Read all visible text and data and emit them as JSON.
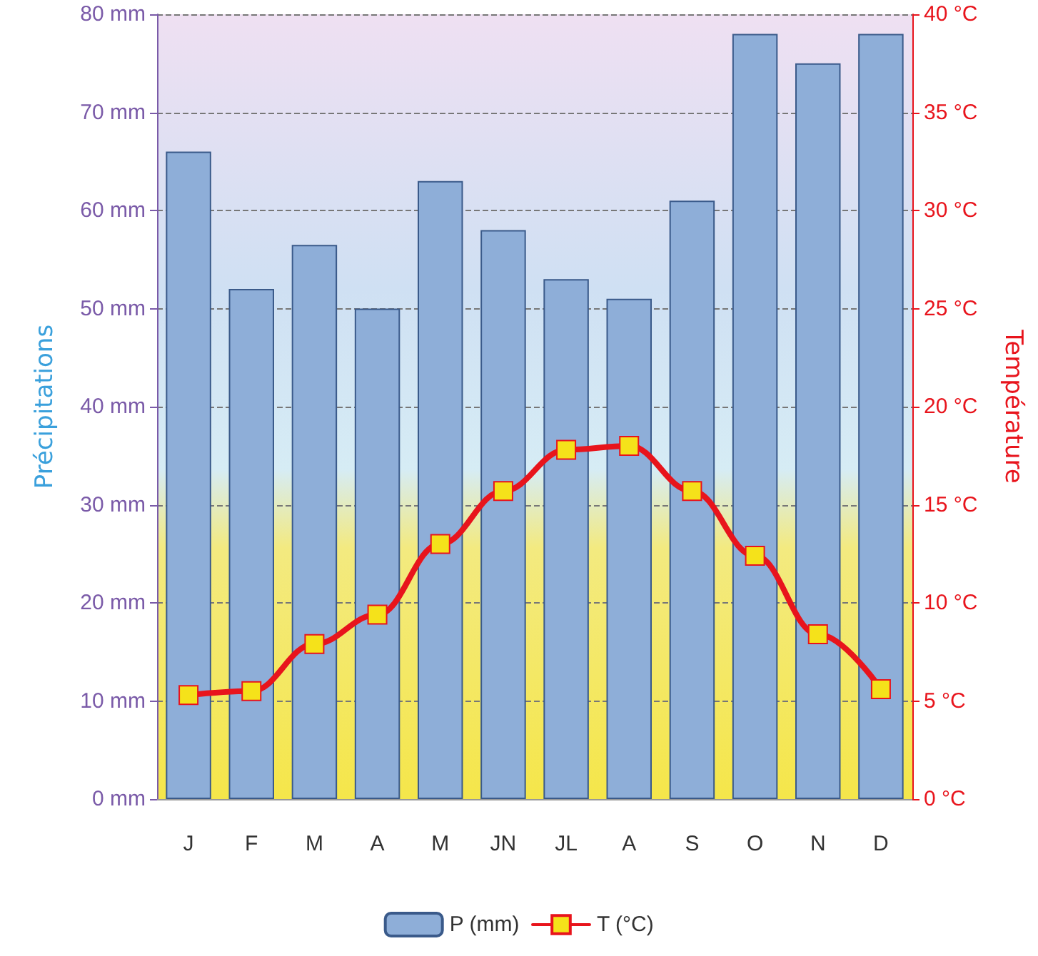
{
  "chart_data": {
    "type": "bar",
    "categories": [
      "J",
      "F",
      "M",
      "A",
      "M",
      "JN",
      "JL",
      "A",
      "S",
      "O",
      "N",
      "D"
    ],
    "series": [
      {
        "name": "P (mm)",
        "color": "#8eaed8",
        "values": [
          66,
          52,
          56.5,
          50,
          63,
          58,
          53,
          51,
          61,
          78,
          75,
          78
        ]
      },
      {
        "name": "T (°C)",
        "type": "line",
        "axis": "y2",
        "color": "#e8141c",
        "values": [
          5.3,
          5.5,
          7.9,
          9.4,
          13,
          15.7,
          17.8,
          18,
          15.7,
          12.4,
          8.4,
          5.6
        ]
      }
    ],
    "ylabel": "Précipitations",
    "y2label": "Température",
    "ylim": [
      0,
      80
    ],
    "yticks": [
      {
        "value": 0,
        "label": "0 mm"
      },
      {
        "value": 10,
        "label": "10 mm"
      },
      {
        "value": 20,
        "label": "20 mm"
      },
      {
        "value": 30,
        "label": "30 mm"
      },
      {
        "value": 40,
        "label": "40 mm"
      },
      {
        "value": 50,
        "label": "50 mm"
      },
      {
        "value": 60,
        "label": "60 mm"
      },
      {
        "value": 70,
        "label": "70 mm"
      },
      {
        "value": 80,
        "label": "80 mm"
      }
    ],
    "y2lim": [
      0,
      40
    ],
    "y2ticks": [
      {
        "value": 0,
        "label": "0 °C"
      },
      {
        "value": 5,
        "label": "5 °C"
      },
      {
        "value": 10,
        "label": "10 °C"
      },
      {
        "value": 15,
        "label": "15 °C"
      },
      {
        "value": 20,
        "label": "20 °C"
      },
      {
        "value": 25,
        "label": "25 °C"
      },
      {
        "value": 30,
        "label": "30 °C"
      },
      {
        "value": 35,
        "label": "35 °C"
      },
      {
        "value": 40,
        "label": "40 °C"
      }
    ],
    "grid": "y",
    "legend": "bottom",
    "marker": "square",
    "line_style": "solid"
  }
}
